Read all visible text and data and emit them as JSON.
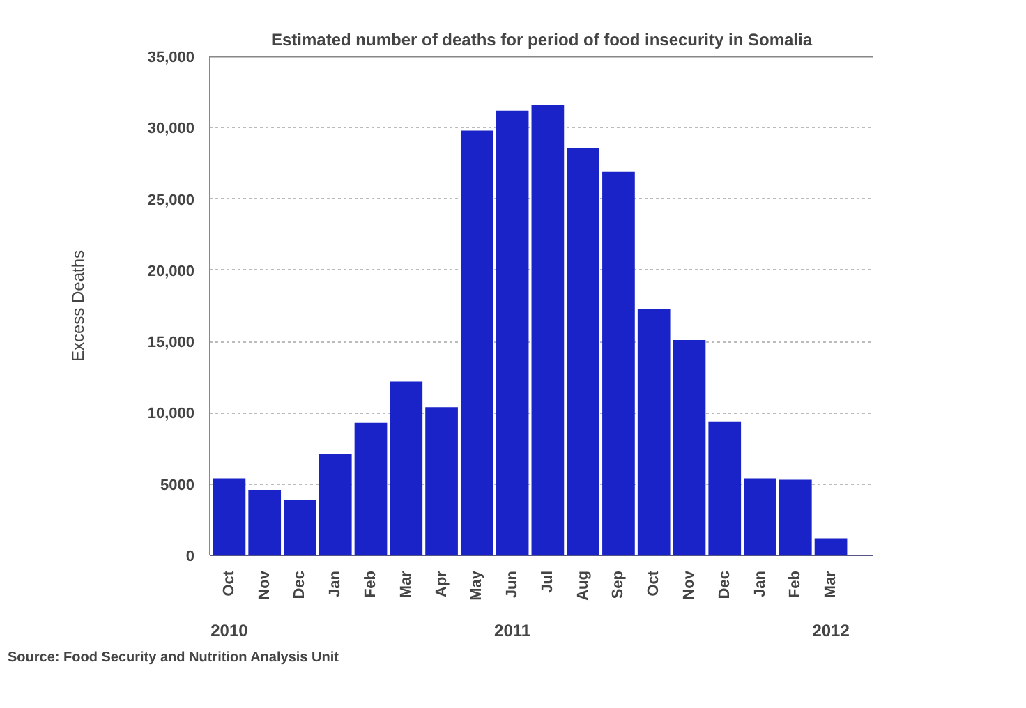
{
  "chart_data": {
    "type": "bar",
    "title": "Estimated number of deaths for period of food insecurity in Somalia",
    "ylabel": "Excess Deaths",
    "categories": [
      "Oct",
      "Nov",
      "Dec",
      "Jan",
      "Feb",
      "Mar",
      "Apr",
      "May",
      "Jun",
      "Jul",
      "Aug",
      "Sep",
      "Oct",
      "Nov",
      "Dec",
      "Jan",
      "Feb",
      "Mar"
    ],
    "values": [
      5400,
      4600,
      3900,
      7100,
      9300,
      12200,
      10400,
      29800,
      31200,
      31600,
      28600,
      26900,
      17300,
      15100,
      9400,
      5400,
      5300,
      1200
    ],
    "color": "#1a23c8",
    "ylim": [
      0,
      35000
    ],
    "yticks": [
      0,
      5000,
      {
        "value": 10000,
        "label": "10,000"
      },
      {
        "value": 15000,
        "label": "15,000"
      },
      {
        "value": 20000,
        "label": "20,000"
      },
      {
        "value": 25000,
        "label": "25,000"
      },
      {
        "value": 30000,
        "label": "30,000"
      },
      {
        "value": 35000,
        "label": "35,000"
      }
    ],
    "grid": "y",
    "annotations": [
      "2010",
      "2011",
      "2012",
      "Source: Food Security and Nutrition Analysis Unit"
    ]
  }
}
